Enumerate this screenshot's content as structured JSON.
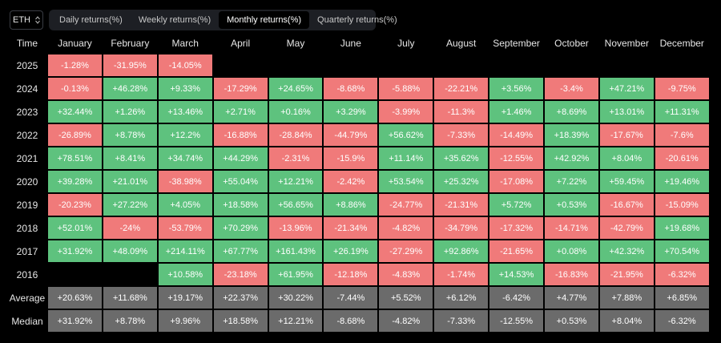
{
  "asset": "ETH",
  "tabs": [
    "Daily returns(%)",
    "Weekly returns(%)",
    "Monthly returns(%)",
    "Quarterly returns(%)"
  ],
  "active_tab": 2,
  "colors": {
    "positive": "#5ec27e",
    "negative": "#f07a7a",
    "summary": "#6b6b6b"
  },
  "table": {
    "corner": "Time",
    "months": [
      "January",
      "February",
      "March",
      "April",
      "May",
      "June",
      "July",
      "August",
      "September",
      "October",
      "November",
      "December"
    ],
    "rows": [
      {
        "year": "2025",
        "values": [
          "-1.28%",
          "-31.95%",
          "-14.05%",
          "",
          "",
          "",
          "",
          "",
          "",
          "",
          "",
          ""
        ]
      },
      {
        "year": "2024",
        "values": [
          "-0.13%",
          "+46.28%",
          "+9.33%",
          "-17.29%",
          "+24.65%",
          "-8.68%",
          "-5.88%",
          "-22.21%",
          "+3.56%",
          "-3.4%",
          "+47.21%",
          "-9.75%"
        ]
      },
      {
        "year": "2023",
        "values": [
          "+32.44%",
          "+1.26%",
          "+13.46%",
          "+2.71%",
          "+0.16%",
          "+3.29%",
          "-3.99%",
          "-11.3%",
          "+1.46%",
          "+8.69%",
          "+13.01%",
          "+11.31%"
        ]
      },
      {
        "year": "2022",
        "values": [
          "-26.89%",
          "+8.78%",
          "+12.2%",
          "-16.88%",
          "-28.84%",
          "-44.79%",
          "+56.62%",
          "-7.33%",
          "-14.49%",
          "+18.39%",
          "-17.67%",
          "-7.6%"
        ]
      },
      {
        "year": "2021",
        "values": [
          "+78.51%",
          "+8.41%",
          "+34.74%",
          "+44.29%",
          "-2.31%",
          "-15.9%",
          "+11.14%",
          "+35.62%",
          "-12.55%",
          "+42.92%",
          "+8.04%",
          "-20.61%"
        ]
      },
      {
        "year": "2020",
        "values": [
          "+39.28%",
          "+21.01%",
          "-38.98%",
          "+55.04%",
          "+12.21%",
          "-2.42%",
          "+53.54%",
          "+25.32%",
          "-17.08%",
          "+7.22%",
          "+59.45%",
          "+19.46%"
        ]
      },
      {
        "year": "2019",
        "values": [
          "-20.23%",
          "+27.22%",
          "+4.05%",
          "+18.58%",
          "+56.65%",
          "+8.86%",
          "-24.77%",
          "-21.31%",
          "+5.72%",
          "+0.53%",
          "-16.67%",
          "-15.09%"
        ]
      },
      {
        "year": "2018",
        "values": [
          "+52.01%",
          "-24%",
          "-53.79%",
          "+70.29%",
          "-13.96%",
          "-21.34%",
          "-4.82%",
          "-34.79%",
          "-17.32%",
          "-14.71%",
          "-42.79%",
          "+19.68%"
        ]
      },
      {
        "year": "2017",
        "values": [
          "+31.92%",
          "+48.09%",
          "+214.11%",
          "+67.77%",
          "+161.43%",
          "+26.19%",
          "-27.29%",
          "+92.86%",
          "-21.65%",
          "+0.08%",
          "+42.32%",
          "+70.54%"
        ]
      },
      {
        "year": "2016",
        "values": [
          "",
          "",
          "+10.58%",
          "-23.18%",
          "+61.95%",
          "-12.18%",
          "-4.83%",
          "-1.74%",
          "+14.53%",
          "-16.83%",
          "-21.95%",
          "-6.32%"
        ]
      }
    ],
    "summary": [
      {
        "label": "Average",
        "values": [
          "+20.63%",
          "+11.68%",
          "+19.17%",
          "+22.37%",
          "+30.22%",
          "-7.44%",
          "+5.52%",
          "+6.12%",
          "-6.42%",
          "+4.77%",
          "+7.88%",
          "+6.85%"
        ]
      },
      {
        "label": "Median",
        "values": [
          "+31.92%",
          "+8.78%",
          "+9.96%",
          "+18.58%",
          "+12.21%",
          "-8.68%",
          "-4.82%",
          "-7.33%",
          "-12.55%",
          "+0.53%",
          "+8.04%",
          "-6.32%"
        ]
      }
    ]
  }
}
